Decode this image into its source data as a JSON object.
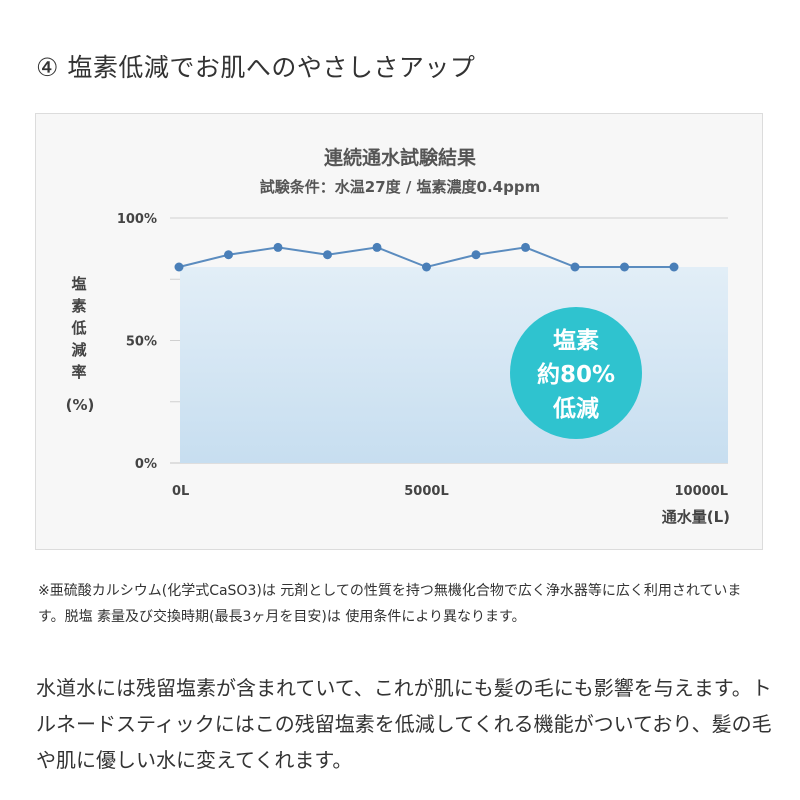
{
  "heading": "④ 塩素低減でお肌へのやさしさアップ",
  "chart_data": {
    "type": "line",
    "title": "連続通水試験結果",
    "subtitle": "試験条件：水温27度 / 塩素濃度0.4ppm",
    "ylabel_chars": [
      "塩",
      "素",
      "低",
      "減",
      "率"
    ],
    "yunit": "(%)",
    "xlabel": "通水量(L)",
    "x": [
      0,
      1000,
      2000,
      3000,
      4000,
      5000,
      6000,
      7000,
      8000,
      9000,
      10000
    ],
    "series": [
      {
        "values": [
          80,
          85,
          88,
          85,
          88,
          80,
          85,
          88,
          80,
          80,
          80
        ]
      }
    ],
    "ylim": [
      0,
      100
    ],
    "xlim": [
      0,
      10000
    ],
    "yticks": [
      {
        "value": 100,
        "label": "100%"
      },
      {
        "value": 50,
        "label": "50%"
      },
      {
        "value": 0,
        "label": "0%"
      }
    ],
    "xticks": [
      {
        "value": 0,
        "label": "0L"
      },
      {
        "value": 5000,
        "label": "5000L"
      },
      {
        "value": 10000,
        "label": "10000L"
      }
    ],
    "badge_lines": [
      "塩素",
      "約80%",
      "低減"
    ],
    "colors": {
      "line": "#5b8cbf",
      "point": "#4a7fb8",
      "fill_top": "#e2eef7",
      "fill_bottom": "#c7def0",
      "badge": "#2fc3cf",
      "grid": "#d0d0d0"
    }
  },
  "note": "※亜硫酸カルシウム(化学式CaSO3)は 元剤としての性質を持つ無機化合物で広く浄水器等に広く利用されています。脱塩 素量及び交換時期(最長3ヶ月を目安)は 使用条件により異なります。",
  "body_text": "水道水には残留塩素が含まれていて、これが肌にも髪の毛にも影響を与えます。トルネードスティックにはこの残留塩素を低減してくれる機能がついており、髪の毛や肌に優しい水に変えてくれます。"
}
